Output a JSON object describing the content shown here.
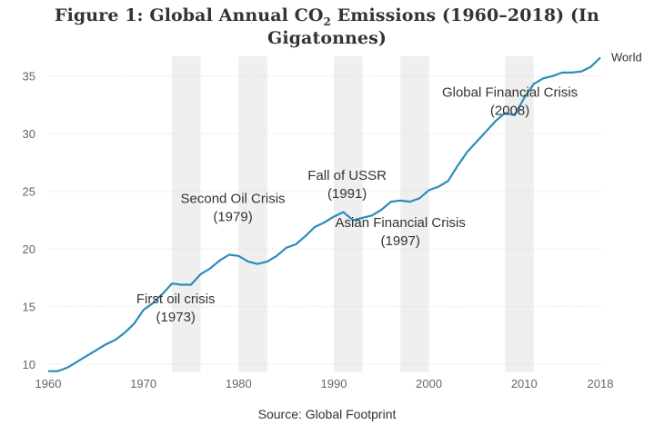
{
  "chart_data": {
    "type": "line",
    "title_prefix": "Figure 1: Global Annual CO",
    "title_sub": "2",
    "title_suffix": " Emissions (1960–2018) (In Gigatonnes)",
    "source": "Source: Global Footprint",
    "xlim": [
      1960,
      2018
    ],
    "ylim": [
      9.3,
      37.5
    ],
    "x_ticks": [
      1960,
      1970,
      1980,
      1990,
      2000,
      2010,
      2018
    ],
    "y_ticks": [
      10,
      15,
      20,
      25,
      30,
      35
    ],
    "grid": "horizontal",
    "line_color": "#2b8cbe",
    "band_color": "#efefef",
    "recession_bands": [
      [
        1973,
        1976
      ],
      [
        1980,
        1983
      ],
      [
        1990,
        1993
      ],
      [
        1997,
        2000
      ],
      [
        2008,
        2011
      ]
    ],
    "series": [
      {
        "name": "World",
        "x": [
          1960,
          1961,
          1962,
          1963,
          1964,
          1965,
          1966,
          1967,
          1968,
          1969,
          1970,
          1971,
          1972,
          1973,
          1974,
          1975,
          1976,
          1977,
          1978,
          1979,
          1980,
          1981,
          1982,
          1983,
          1984,
          1985,
          1986,
          1987,
          1988,
          1989,
          1990,
          1991,
          1992,
          1993,
          1994,
          1995,
          1996,
          1997,
          1998,
          1999,
          2000,
          2001,
          2002,
          2003,
          2004,
          2005,
          2006,
          2007,
          2008,
          2009,
          2010,
          2011,
          2012,
          2013,
          2014,
          2015,
          2016,
          2017,
          2018
        ],
        "values": [
          9.4,
          9.4,
          9.7,
          10.2,
          10.7,
          11.2,
          11.7,
          12.1,
          12.7,
          13.5,
          14.7,
          15.3,
          16.1,
          17.0,
          16.9,
          16.9,
          17.8,
          18.3,
          19.0,
          19.5,
          19.4,
          18.9,
          18.7,
          18.9,
          19.4,
          20.1,
          20.4,
          21.1,
          21.9,
          22.3,
          22.8,
          23.2,
          22.5,
          22.7,
          22.9,
          23.4,
          24.1,
          24.2,
          24.1,
          24.4,
          25.1,
          25.4,
          25.9,
          27.2,
          28.4,
          29.3,
          30.2,
          31.1,
          31.8,
          31.6,
          33.1,
          34.3,
          34.8,
          35.0,
          35.3,
          35.3,
          35.4,
          35.8,
          36.6
        ]
      }
    ],
    "annotations": [
      {
        "line1": "First oil crisis",
        "line2": "(1973)",
        "x": 1973.4,
        "y": 15.3
      },
      {
        "line1": "Second Oil Crisis",
        "line2": "(1979)",
        "x": 1979.4,
        "y": 24.0
      },
      {
        "line1": "Fall of USSR",
        "line2": "(1991)",
        "x": 1991.4,
        "y": 26.0
      },
      {
        "line1": "Asian Financial Crisis",
        "line2": "(1997)",
        "x": 1997.0,
        "y": 21.9
      },
      {
        "line1": "Global Financial Crisis",
        "line2": "(2008)",
        "x": 2008.5,
        "y": 33.2
      }
    ]
  }
}
